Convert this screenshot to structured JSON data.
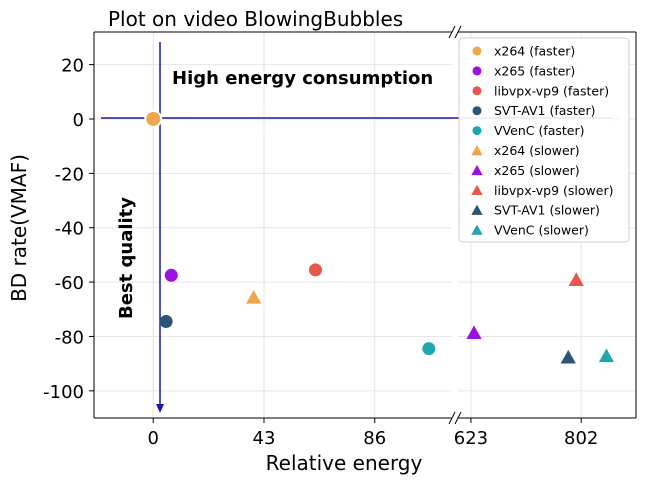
{
  "chart_data": {
    "type": "scatter",
    "title": "Plot on video BlowingBubbles",
    "xlabel": "Relative energy",
    "ylabel": "BD rate(VMAF)",
    "ylim": [
      -110,
      32
    ],
    "broken_x_axis": true,
    "x_segments": [
      {
        "xlim": [
          -23,
          116
        ],
        "ticks": [
          0,
          43,
          86
        ]
      },
      {
        "xlim": [
          602,
          891
        ],
        "ticks": [
          623,
          802
        ]
      }
    ],
    "yticks": [
      20,
      0,
      -20,
      -40,
      -60,
      -80,
      -100
    ],
    "grid": true,
    "legend_position": "top-right",
    "annotations": {
      "high_energy": "High energy consumption",
      "best_quality": "Best quality"
    },
    "reference_point": {
      "x": 0,
      "y": 0
    },
    "series": [
      {
        "name": "x264 (faster)",
        "marker": "circle",
        "color": "#f0a64a",
        "points": []
      },
      {
        "name": "x265 (faster)",
        "marker": "circle",
        "color": "#9b11e0",
        "points": [
          {
            "x": 7,
            "y": -57.5
          }
        ]
      },
      {
        "name": "libvpx-vp9 (faster)",
        "marker": "circle",
        "color": "#e8574a",
        "points": [
          {
            "x": 63,
            "y": -55.5
          }
        ]
      },
      {
        "name": "SVT-AV1 (faster)",
        "marker": "circle",
        "color": "#2a5676",
        "points": [
          {
            "x": 5,
            "y": -74.5
          }
        ]
      },
      {
        "name": "VVenC (faster)",
        "marker": "circle",
        "color": "#1fa6b0",
        "points": [
          {
            "x": 107,
            "y": -84.5
          }
        ]
      },
      {
        "name": "x264 (slower)",
        "marker": "triangle",
        "color": "#f0a64a",
        "points": [
          {
            "x": 39,
            "y": -65.5
          }
        ]
      },
      {
        "name": "x265 (slower)",
        "marker": "triangle",
        "color": "#9b11e0",
        "points": [
          {
            "x": 628,
            "y": -78.5
          }
        ]
      },
      {
        "name": "libvpx-vp9 (slower)",
        "marker": "triangle",
        "color": "#e8574a",
        "points": [
          {
            "x": 794,
            "y": -59
          }
        ]
      },
      {
        "name": "SVT-AV1 (slower)",
        "marker": "triangle",
        "color": "#2a5676",
        "points": [
          {
            "x": 781,
            "y": -87.5
          }
        ]
      },
      {
        "name": "VVenC (slower)",
        "marker": "triangle",
        "color": "#1fa6b0",
        "points": [
          {
            "x": 843,
            "y": -87
          }
        ]
      }
    ]
  }
}
